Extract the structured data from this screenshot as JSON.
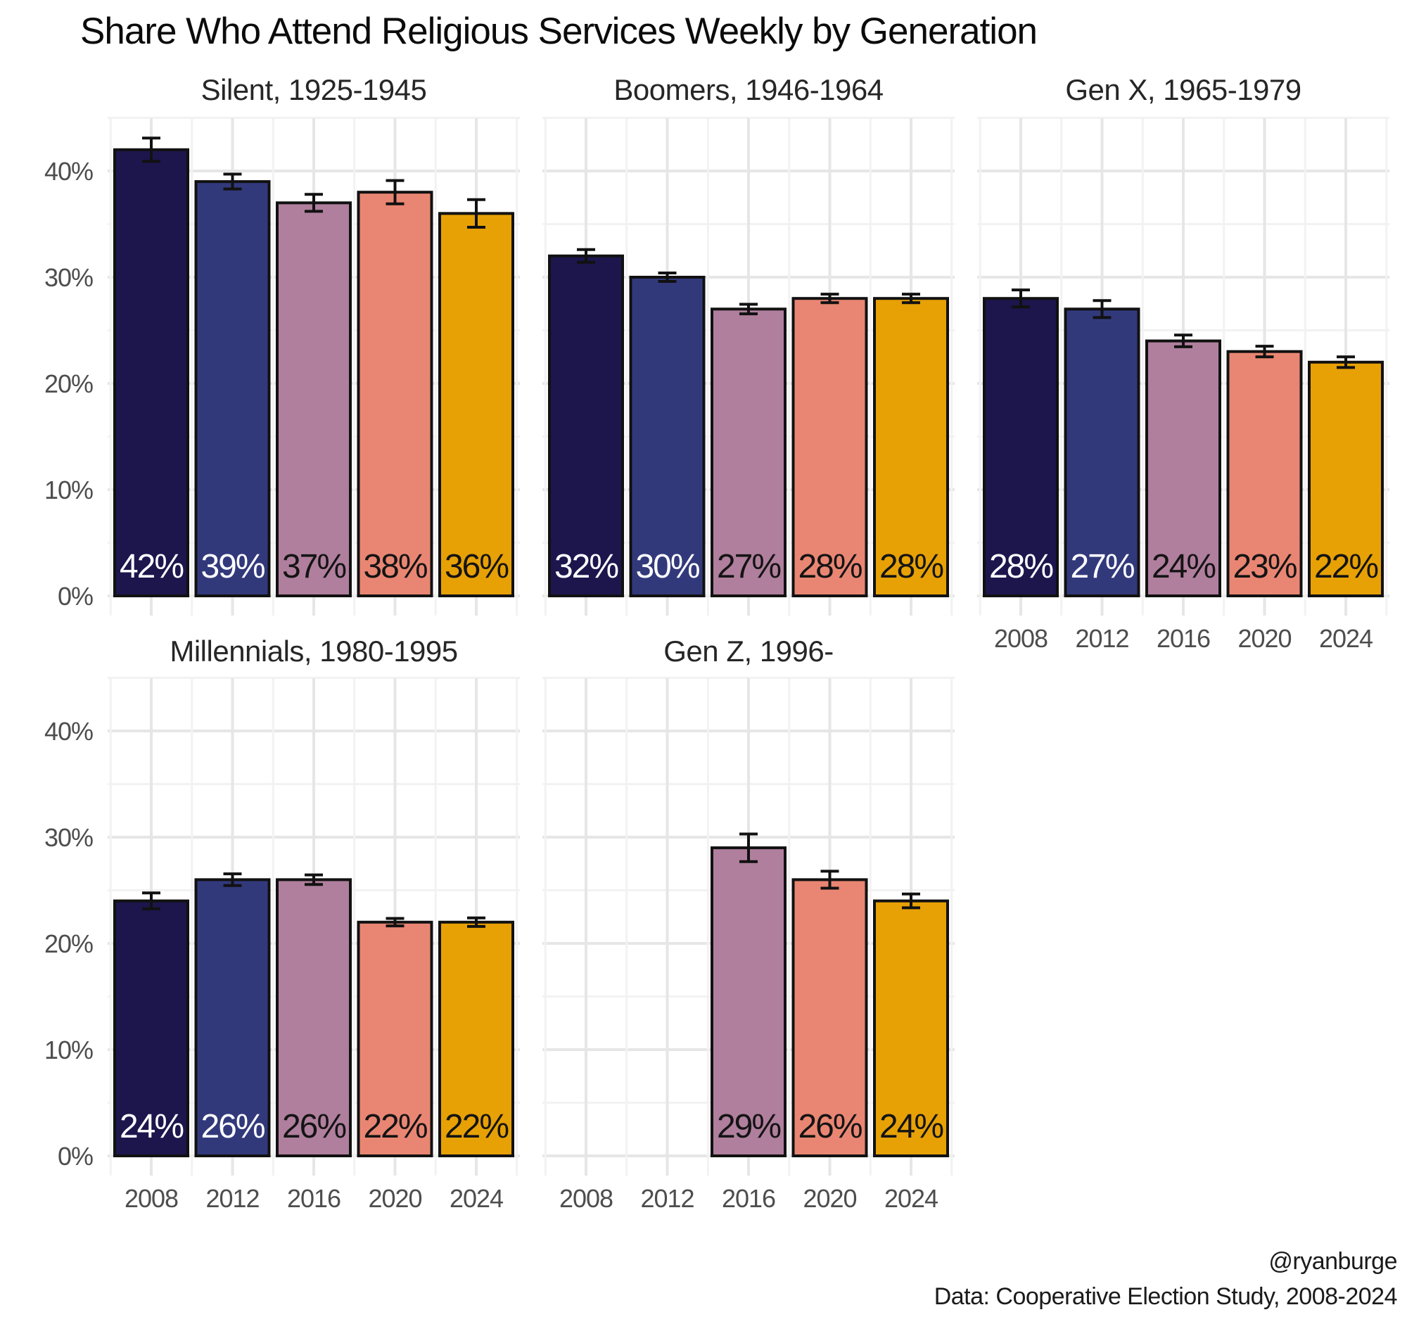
{
  "title": "Share Who Attend Religious Services Weekly by Generation",
  "footer": {
    "handle": "@ryanburge",
    "source": "Data: Cooperative Election Study, 2008-2024"
  },
  "chart_data": {
    "type": "bar",
    "x": [
      2008,
      2012,
      2016,
      2020,
      2024
    ],
    "x_tick_labels": [
      "2008",
      "2012",
      "2016",
      "2020",
      "2024"
    ],
    "y_ticks": [
      0,
      10,
      20,
      30,
      40
    ],
    "y_tick_labels": [
      "0%",
      "10%",
      "20%",
      "30%",
      "40%"
    ],
    "ylim": [
      0,
      45
    ],
    "grid": true,
    "legend": "none",
    "error_bars": true,
    "facets": [
      {
        "title": "Silent, 1925-1945",
        "values": [
          42,
          39,
          37,
          38,
          36
        ],
        "labels": [
          "42%",
          "39%",
          "37%",
          "38%",
          "36%"
        ],
        "errors": [
          1.1,
          0.7,
          0.8,
          1.1,
          1.3
        ]
      },
      {
        "title": "Boomers, 1946-1964",
        "values": [
          32,
          30,
          27,
          28,
          28
        ],
        "labels": [
          "32%",
          "30%",
          "27%",
          "28%",
          "28%"
        ],
        "errors": [
          0.6,
          0.4,
          0.45,
          0.4,
          0.4
        ]
      },
      {
        "title": "Gen X, 1965-1979",
        "values": [
          28,
          27,
          24,
          23,
          22
        ],
        "labels": [
          "28%",
          "27%",
          "24%",
          "23%",
          "22%"
        ],
        "errors": [
          0.8,
          0.8,
          0.55,
          0.5,
          0.5
        ]
      },
      {
        "title": "Millennials, 1980-1995",
        "values": [
          24,
          26,
          26,
          22,
          22
        ],
        "labels": [
          "24%",
          "26%",
          "26%",
          "22%",
          "22%"
        ],
        "errors": [
          0.75,
          0.55,
          0.45,
          0.35,
          0.4
        ]
      },
      {
        "title": "Gen Z, 1996-",
        "values": [
          null,
          null,
          29,
          26,
          24
        ],
        "labels": [
          null,
          null,
          "29%",
          "26%",
          "24%"
        ],
        "errors": [
          null,
          null,
          1.3,
          0.8,
          0.65
        ]
      }
    ],
    "bar_colors": [
      "#1c164d",
      "#32397b",
      "#b07f9d",
      "#e98673",
      "#e7a105"
    ],
    "bar_outline_color": "#111111",
    "error_bar_color": "#111111",
    "label_text_colors": [
      "#ffffff",
      "#ffffff",
      "#141414",
      "#141414",
      "#141414"
    ],
    "axis_text_color": "#4d4d4d",
    "grid_major_color": "#e6e6e6",
    "grid_minor_color": "#f2f2f2",
    "background_color": "#ffffff"
  }
}
